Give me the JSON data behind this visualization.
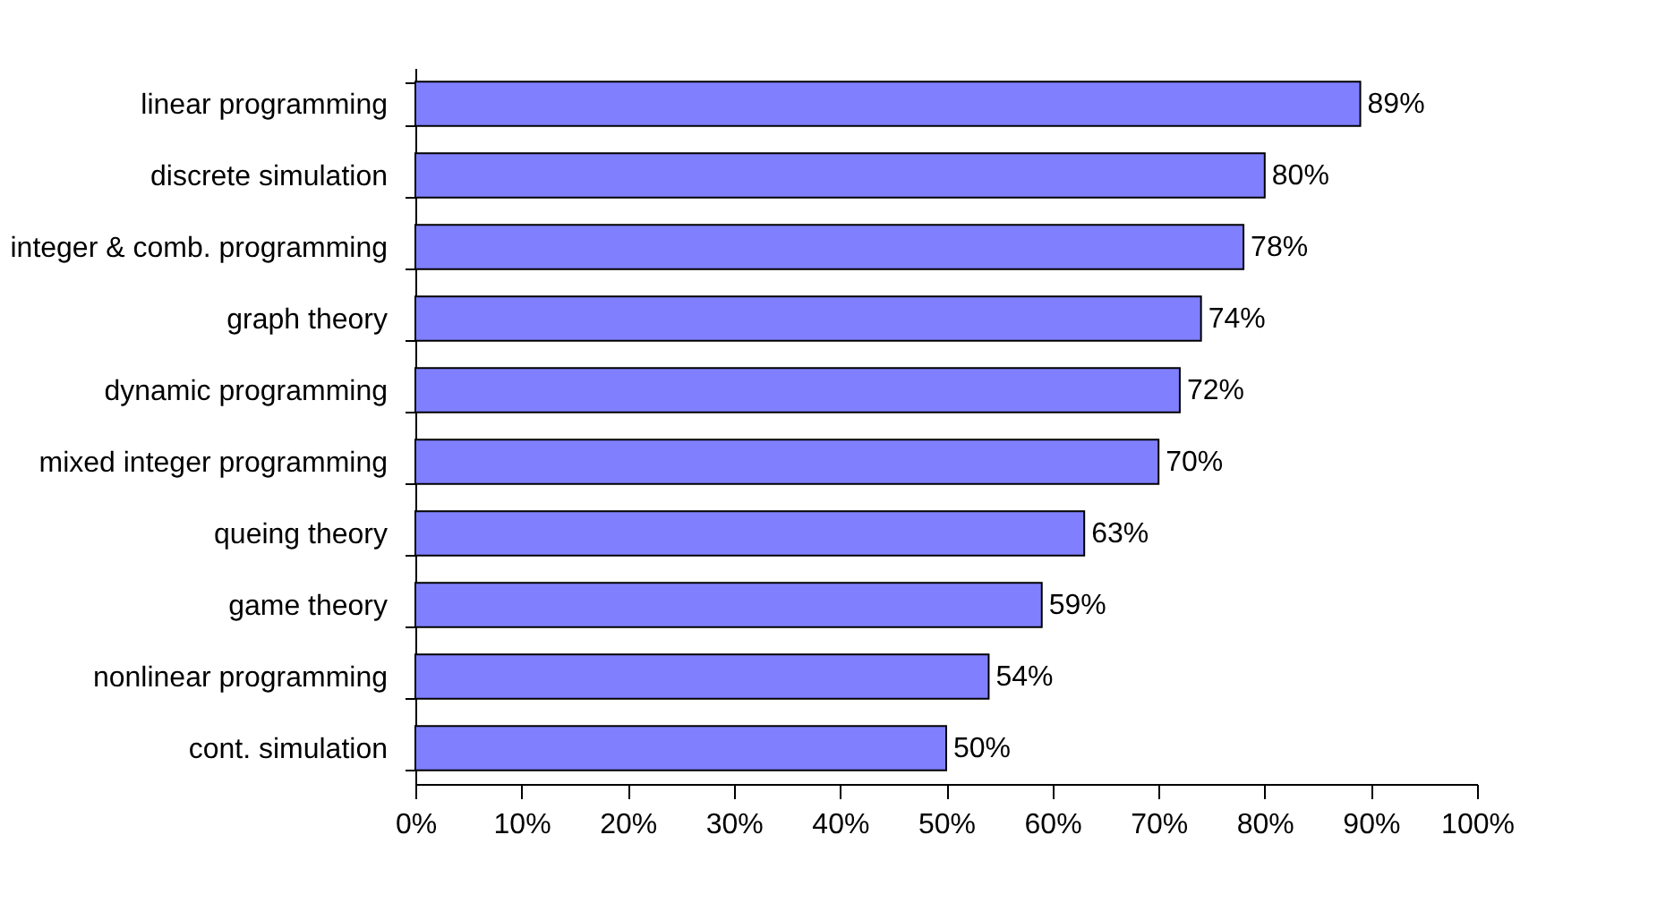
{
  "chart_data": {
    "type": "bar",
    "orientation": "horizontal",
    "categories": [
      "linear programming",
      "discrete simulation",
      "integer & comb. programming",
      "graph theory",
      "dynamic programming",
      "mixed integer programming",
      "queing theory",
      "game theory",
      "nonlinear programming",
      "cont. simulation"
    ],
    "values": [
      89,
      80,
      78,
      74,
      72,
      70,
      63,
      59,
      54,
      50
    ],
    "value_labels": [
      "89%",
      "80%",
      "78%",
      "74%",
      "72%",
      "70%",
      "63%",
      "59%",
      "54%",
      "50%"
    ],
    "color": "#8080ff",
    "xlim": [
      0,
      100
    ],
    "xticks": [
      {
        "value": 0,
        "label": "0%"
      },
      {
        "value": 10,
        "label": "10%"
      },
      {
        "value": 20,
        "label": "20%"
      },
      {
        "value": 30,
        "label": "30%"
      },
      {
        "value": 40,
        "label": "40%"
      },
      {
        "value": 50,
        "label": "50%"
      },
      {
        "value": 60,
        "label": "60%"
      },
      {
        "value": 70,
        "label": "70%"
      },
      {
        "value": 80,
        "label": "80%"
      },
      {
        "value": 90,
        "label": "90%"
      },
      {
        "value": 100,
        "label": "100%"
      }
    ],
    "grid": false
  }
}
